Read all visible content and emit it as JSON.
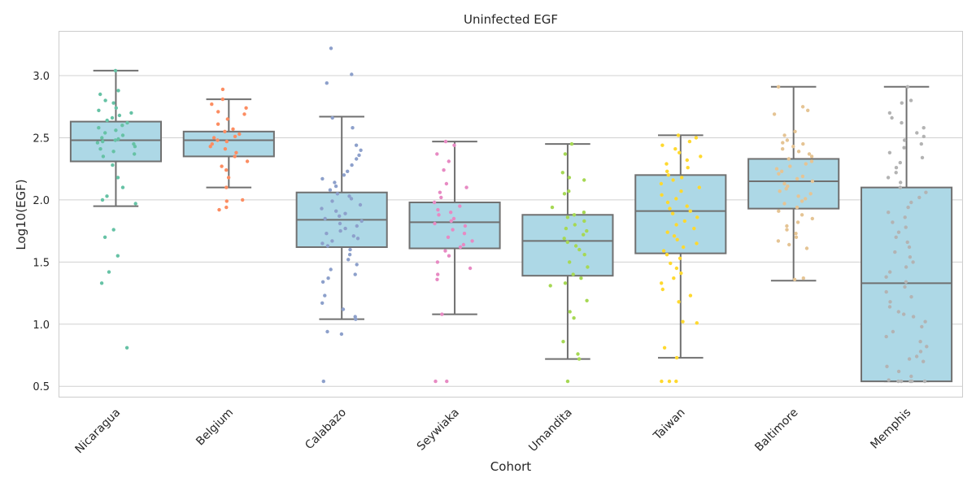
{
  "chart_data": {
    "type": "box",
    "title": "Uninfected EGF",
    "xlabel": "Cohort",
    "ylabel": "Log10(EGF)",
    "ylim": [
      0.41,
      3.36
    ],
    "yticks": [
      0.5,
      1.0,
      1.5,
      2.0,
      2.5,
      3.0
    ],
    "ytick_labels": [
      "0.5",
      "1.0",
      "1.5",
      "2.0",
      "2.5",
      "3.0"
    ],
    "grid": true,
    "box_color": "#add8e6",
    "line_color": "#707070",
    "grid_color": "#d0d0d0",
    "categories": [
      "Nicaragua",
      "Belgium",
      "Calabazo",
      "Seywiaka",
      "Umandita",
      "Taiwan",
      "Baltimore",
      "Memphis"
    ],
    "boxes": [
      {
        "label": "Nicaragua",
        "color": "#66c2a5",
        "whisker_low": 1.95,
        "q1": 2.31,
        "median": 2.48,
        "q3": 2.63,
        "whisker_high": 3.04,
        "points": [
          3.04,
          2.88,
          2.85,
          2.8,
          2.78,
          2.74,
          2.72,
          2.7,
          2.68,
          2.66,
          2.64,
          2.62,
          2.6,
          2.58,
          2.56,
          2.54,
          2.52,
          2.5,
          2.49,
          2.48,
          2.47,
          2.46,
          2.45,
          2.43,
          2.41,
          2.39,
          2.37,
          2.35,
          2.28,
          2.18,
          2.1,
          2.03,
          2.0,
          1.97,
          1.76,
          1.7,
          1.55,
          1.42,
          1.33,
          0.81
        ]
      },
      {
        "label": "Belgium",
        "color": "#fc8d62",
        "whisker_low": 2.1,
        "q1": 2.35,
        "median": 2.48,
        "q3": 2.55,
        "whisker_high": 2.81,
        "points": [
          2.89,
          2.81,
          2.77,
          2.74,
          2.71,
          2.69,
          2.65,
          2.61,
          2.57,
          2.55,
          2.53,
          2.51,
          2.5,
          2.48,
          2.47,
          2.45,
          2.43,
          2.41,
          2.38,
          2.35,
          2.31,
          2.27,
          2.24,
          2.18,
          2.1,
          2.0,
          1.99,
          1.94,
          1.92
        ]
      },
      {
        "label": "Calabazo",
        "color": "#8da0cb",
        "whisker_low": 1.04,
        "q1": 1.62,
        "median": 1.84,
        "q3": 2.06,
        "whisker_high": 2.67,
        "points": [
          3.22,
          3.01,
          2.94,
          2.66,
          2.58,
          2.44,
          2.4,
          2.36,
          2.33,
          2.28,
          2.23,
          2.2,
          2.17,
          2.14,
          2.11,
          2.08,
          2.05,
          2.03,
          2.01,
          1.99,
          1.96,
          1.93,
          1.91,
          1.89,
          1.87,
          1.85,
          1.83,
          1.81,
          1.79,
          1.77,
          1.75,
          1.73,
          1.71,
          1.69,
          1.67,
          1.65,
          1.63,
          1.6,
          1.56,
          1.52,
          1.48,
          1.44,
          1.4,
          1.37,
          1.34,
          1.23,
          1.17,
          1.12,
          1.06,
          1.04,
          0.94,
          0.92,
          0.54
        ]
      },
      {
        "label": "Seywiaka",
        "color": "#e78ac3",
        "whisker_low": 1.08,
        "q1": 1.61,
        "median": 1.82,
        "q3": 1.98,
        "whisker_high": 2.47,
        "points": [
          2.47,
          2.44,
          2.37,
          2.31,
          2.24,
          2.13,
          2.1,
          2.06,
          2.02,
          1.98,
          1.95,
          1.92,
          1.9,
          1.88,
          1.85,
          1.83,
          1.81,
          1.79,
          1.76,
          1.73,
          1.7,
          1.67,
          1.64,
          1.62,
          1.59,
          1.55,
          1.5,
          1.45,
          1.4,
          1.36,
          1.08,
          0.54,
          0.54
        ]
      },
      {
        "label": "Umandita",
        "color": "#a6d854",
        "whisker_low": 0.72,
        "q1": 1.39,
        "median": 1.67,
        "q3": 1.88,
        "whisker_high": 2.45,
        "points": [
          2.45,
          2.37,
          2.22,
          2.18,
          2.16,
          2.07,
          2.05,
          1.94,
          1.9,
          1.88,
          1.86,
          1.83,
          1.8,
          1.77,
          1.75,
          1.72,
          1.69,
          1.66,
          1.63,
          1.6,
          1.56,
          1.5,
          1.46,
          1.4,
          1.37,
          1.33,
          1.31,
          1.19,
          1.1,
          1.05,
          0.86,
          0.76,
          0.72,
          0.54
        ]
      },
      {
        "label": "Taiwan",
        "color": "#ffd92f",
        "whisker_low": 0.73,
        "q1": 1.57,
        "median": 1.91,
        "q3": 2.2,
        "whisker_high": 2.52,
        "points": [
          2.52,
          2.5,
          2.47,
          2.44,
          2.41,
          2.38,
          2.35,
          2.32,
          2.29,
          2.26,
          2.23,
          2.2,
          2.18,
          2.16,
          2.13,
          2.1,
          2.07,
          2.04,
          2.01,
          1.98,
          1.95,
          1.93,
          1.91,
          1.89,
          1.86,
          1.83,
          1.8,
          1.77,
          1.74,
          1.71,
          1.68,
          1.65,
          1.62,
          1.59,
          1.56,
          1.53,
          1.49,
          1.45,
          1.41,
          1.37,
          1.33,
          1.28,
          1.23,
          1.18,
          1.02,
          1.01,
          0.81,
          0.73,
          0.54,
          0.54,
          0.54
        ]
      },
      {
        "label": "Baltimore",
        "color": "#e5c494",
        "whisker_low": 1.35,
        "q1": 1.93,
        "median": 2.15,
        "q3": 2.33,
        "whisker_high": 2.91,
        "points": [
          2.91,
          2.75,
          2.72,
          2.69,
          2.55,
          2.52,
          2.48,
          2.46,
          2.45,
          2.43,
          2.41,
          2.39,
          2.37,
          2.35,
          2.33,
          2.31,
          2.29,
          2.27,
          2.25,
          2.23,
          2.21,
          2.19,
          2.17,
          2.15,
          2.13,
          2.11,
          2.09,
          2.07,
          2.05,
          2.03,
          2.01,
          1.99,
          1.97,
          1.94,
          1.91,
          1.88,
          1.85,
          1.82,
          1.79,
          1.76,
          1.73,
          1.7,
          1.67,
          1.64,
          1.61,
          1.37,
          1.36
        ]
      },
      {
        "label": "Memphis",
        "color": "#b3b3b3",
        "whisker_low": 0.54,
        "q1": 0.54,
        "median": 1.33,
        "q3": 2.1,
        "whisker_high": 2.91,
        "points": [
          2.91,
          2.8,
          2.78,
          2.7,
          2.66,
          2.62,
          2.58,
          2.54,
          2.51,
          2.48,
          2.45,
          2.42,
          2.38,
          2.34,
          2.3,
          2.26,
          2.22,
          2.18,
          2.14,
          2.1,
          2.06,
          2.02,
          1.98,
          1.94,
          1.9,
          1.86,
          1.82,
          1.78,
          1.74,
          1.7,
          1.66,
          1.62,
          1.58,
          1.54,
          1.5,
          1.46,
          1.42,
          1.38,
          1.34,
          1.3,
          1.26,
          1.22,
          1.18,
          1.14,
          1.1,
          1.08,
          1.06,
          1.02,
          0.98,
          0.94,
          0.9,
          0.86,
          0.82,
          0.78,
          0.74,
          0.72,
          0.7,
          0.66,
          0.62,
          0.58,
          0.55,
          0.54,
          0.54,
          0.54,
          0.54,
          0.54
        ]
      }
    ]
  }
}
